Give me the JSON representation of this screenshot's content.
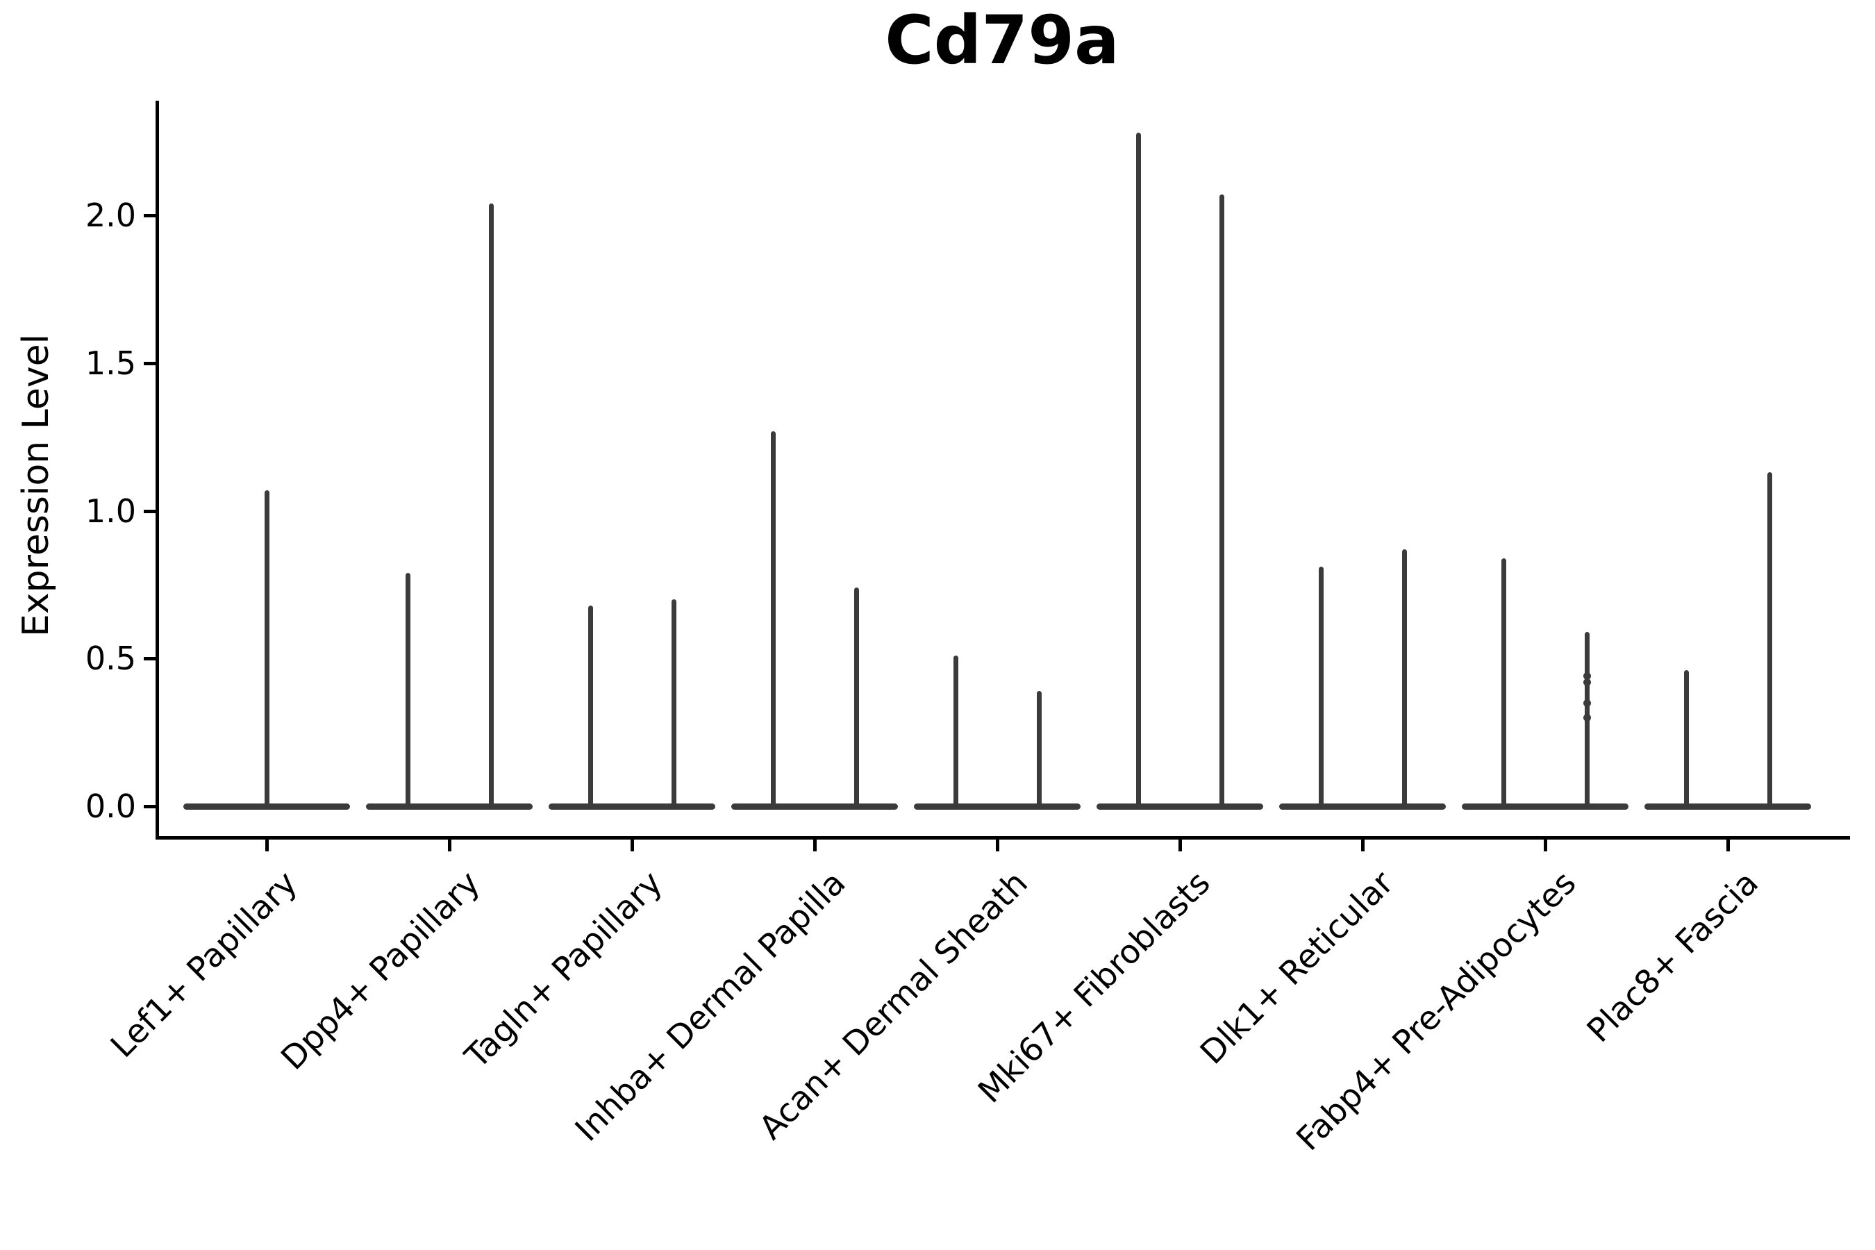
{
  "chart_data": {
    "type": "violin",
    "title": "Cd79a",
    "ylabel": "Expression Level",
    "xlabel": "",
    "grid": false,
    "legend": null,
    "ylim": [
      -0.11,
      2.38
    ],
    "ytick_labels": [
      "0.0",
      "0.5",
      "1.0",
      "1.5",
      "2.0"
    ],
    "ytick_values": [
      0.0,
      0.5,
      1.0,
      1.5,
      2.0
    ],
    "categories": [
      "Lef1+ Papillary",
      "Dpp4+ Papillary",
      "Tagln+ Papillary",
      "Inhba+ Dermal Papilla",
      "Acan+ Dermal Sheath",
      "Mki67+ Fibroblasts",
      "Dlk1+ Reticular",
      "Fabp4+ Pre-Adipocytes",
      "Plac8+ Fascia"
    ],
    "groups": [
      {
        "label": "Lef1+ Papillary",
        "violins": [
          {
            "slot": "center",
            "max": 1.07
          }
        ]
      },
      {
        "label": "Dpp4+ Papillary",
        "violins": [
          {
            "slot": "left",
            "max": 0.79
          },
          {
            "slot": "right",
            "max": 2.04
          }
        ]
      },
      {
        "label": "Tagln+ Papillary",
        "violins": [
          {
            "slot": "left",
            "max": 0.68
          },
          {
            "slot": "right",
            "max": 0.7
          }
        ]
      },
      {
        "label": "Inhba+ Dermal Papilla",
        "violins": [
          {
            "slot": "left",
            "max": 1.27
          },
          {
            "slot": "right",
            "max": 0.74
          }
        ]
      },
      {
        "label": "Acan+ Dermal Sheath",
        "violins": [
          {
            "slot": "left",
            "max": 0.51
          },
          {
            "slot": "right",
            "max": 0.39
          }
        ]
      },
      {
        "label": "Mki67+ Fibroblasts",
        "violins": [
          {
            "slot": "left",
            "max": 2.28
          },
          {
            "slot": "right",
            "max": 2.07
          }
        ]
      },
      {
        "label": "Dlk1+ Reticular",
        "violins": [
          {
            "slot": "left",
            "max": 0.81
          },
          {
            "slot": "right",
            "max": 0.87
          }
        ]
      },
      {
        "label": "Fabp4+ Pre-Adipocytes",
        "violins": [
          {
            "slot": "left",
            "max": 0.84
          },
          {
            "slot": "right",
            "max": 0.59
          }
        ]
      },
      {
        "label": "Plac8+ Fascia",
        "violins": [
          {
            "slot": "left",
            "max": 0.46
          },
          {
            "slot": "right",
            "max": 1.13
          }
        ]
      }
    ],
    "jitter_points": [
      {
        "category": "Fabp4+ Pre-Adipocytes",
        "slot": "right",
        "values": [
          0.44,
          0.42,
          0.35,
          0.3
        ]
      }
    ],
    "colors": {
      "violin": "#3b3b3b",
      "axis": "#000000",
      "text": "#000000"
    }
  }
}
